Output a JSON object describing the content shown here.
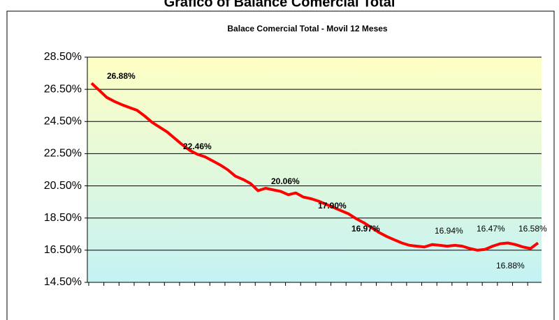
{
  "chart_data": {
    "type": "line",
    "title": "Grafico of Balance Comercial Total",
    "subtitle": "Balace Comercial Total - Movil 12 Meses",
    "categories": [
      null,
      null,
      null,
      null,
      null,
      null,
      null,
      null,
      null,
      null,
      null,
      null,
      null,
      null,
      null,
      null,
      null,
      null,
      null,
      null,
      null,
      null,
      null,
      null,
      null,
      null,
      null,
      null,
      null,
      null,
      null,
      null,
      null,
      null,
      null,
      null,
      null,
      null,
      null,
      null,
      null,
      null,
      null,
      null,
      null,
      null,
      null,
      null,
      null,
      null,
      null,
      null,
      null,
      null,
      null,
      null,
      null,
      null,
      null,
      null
    ],
    "series": [
      {
        "name": "Balace Comercial Total",
        "color": "#ff0000",
        "values": [
          26.88,
          26.45,
          26.0,
          25.75,
          25.55,
          25.37,
          25.2,
          24.85,
          24.45,
          24.15,
          23.85,
          23.45,
          23.05,
          22.7,
          22.46,
          22.3,
          22.05,
          21.8,
          21.5,
          21.1,
          20.9,
          20.65,
          20.2,
          20.35,
          20.25,
          20.15,
          19.95,
          20.06,
          19.8,
          19.7,
          19.55,
          19.35,
          19.15,
          18.95,
          18.75,
          18.45,
          18.2,
          17.9,
          17.6,
          17.35,
          17.15,
          16.95,
          16.8,
          16.75,
          16.7,
          16.85,
          16.8,
          16.75,
          16.8,
          16.75,
          16.6,
          16.5,
          16.55,
          16.75,
          16.9,
          16.95,
          16.85,
          16.7,
          16.6,
          16.95
        ]
      }
    ],
    "ylim": [
      14.5,
      28.5
    ],
    "yticks": [
      {
        "value": 14.5,
        "label": "14.50%"
      },
      {
        "value": 16.5,
        "label": "16.50%"
      },
      {
        "value": 18.5,
        "label": "18.50%"
      },
      {
        "value": 20.5,
        "label": "20.50%"
      },
      {
        "value": 22.5,
        "label": "22.50%"
      },
      {
        "value": 24.5,
        "label": "24.50%"
      },
      {
        "value": 26.5,
        "label": "26.50%"
      },
      {
        "value": 28.5,
        "label": "28.50%"
      }
    ],
    "grid": true,
    "annotations": [
      "26.88%",
      "22.46%",
      "20.06%",
      "17.90%",
      "16.97%",
      "16.94%",
      "16.47%",
      "16.58%",
      "16.88%"
    ]
  }
}
